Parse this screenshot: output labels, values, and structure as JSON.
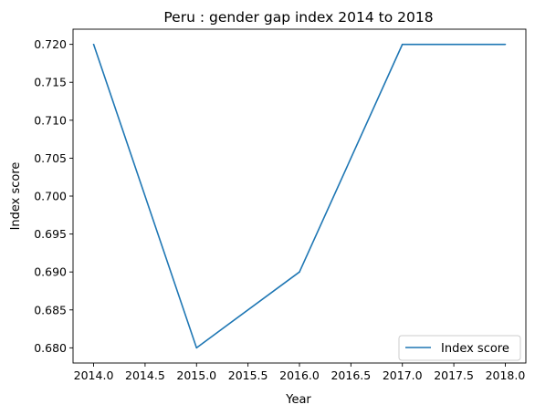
{
  "chart_data": {
    "type": "line",
    "title": "Peru : gender gap index 2014 to 2018",
    "xlabel": "Year",
    "ylabel": "Index score",
    "x": [
      2014,
      2015,
      2016,
      2017,
      2018
    ],
    "series": [
      {
        "name": "Index score",
        "values": [
          0.72,
          0.68,
          0.69,
          0.72,
          0.72
        ],
        "color": "#1f77b4"
      }
    ],
    "xlim": [
      2013.8,
      2018.2
    ],
    "ylim": [
      0.678,
      0.722
    ],
    "xticks": [
      "2014.0",
      "2014.5",
      "2015.0",
      "2015.5",
      "2016.0",
      "2016.5",
      "2017.0",
      "2017.5",
      "2018.0"
    ],
    "yticks": [
      "0.680",
      "0.685",
      "0.690",
      "0.695",
      "0.700",
      "0.705",
      "0.710",
      "0.715",
      "0.720"
    ],
    "grid": false,
    "legend": "lower-right"
  }
}
